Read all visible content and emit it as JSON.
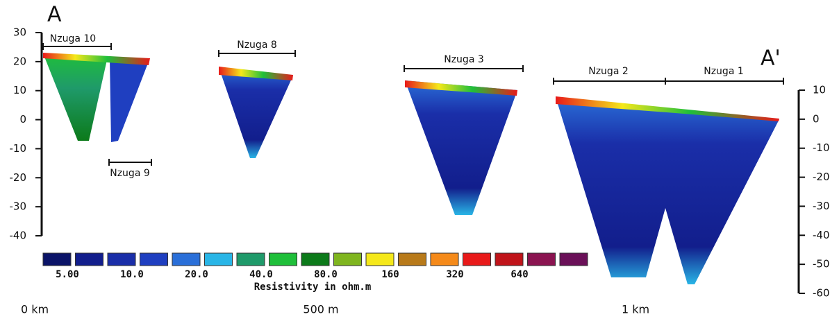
{
  "section_labels": {
    "start": "A",
    "end": "A'"
  },
  "profiles": [
    "Nzuga 10",
    "Nzuga 8",
    "Nzuga 3",
    "Nzuga 2",
    "Nzuga 1",
    "Nzuga 9"
  ],
  "left_axis": {
    "ticks": [
      30,
      20,
      10,
      0,
      -10,
      -20,
      -30,
      -40
    ]
  },
  "right_axis": {
    "ticks": [
      10,
      0,
      -10,
      -20,
      -30,
      -40,
      -50,
      -60
    ]
  },
  "colorbar": {
    "title": "Resistivity in ohm.m",
    "labels": [
      "5.00",
      "10.0",
      "20.0",
      "40.0",
      "80.0",
      "160",
      "320",
      "640"
    ],
    "colors": [
      "#0b1468",
      "#121e8c",
      "#1a2ea8",
      "#1f3fc0",
      "#2a6fd8",
      "#29b5e6",
      "#1f9a6a",
      "#1fbf3a",
      "#0c7a1a",
      "#7fb51f",
      "#f5e81a",
      "#b87a1a",
      "#f58a1a",
      "#e81a1a",
      "#c0141a",
      "#8a1450",
      "#6a1058"
    ]
  },
  "distance": [
    "0 km",
    "500 m",
    "1 km"
  ]
}
